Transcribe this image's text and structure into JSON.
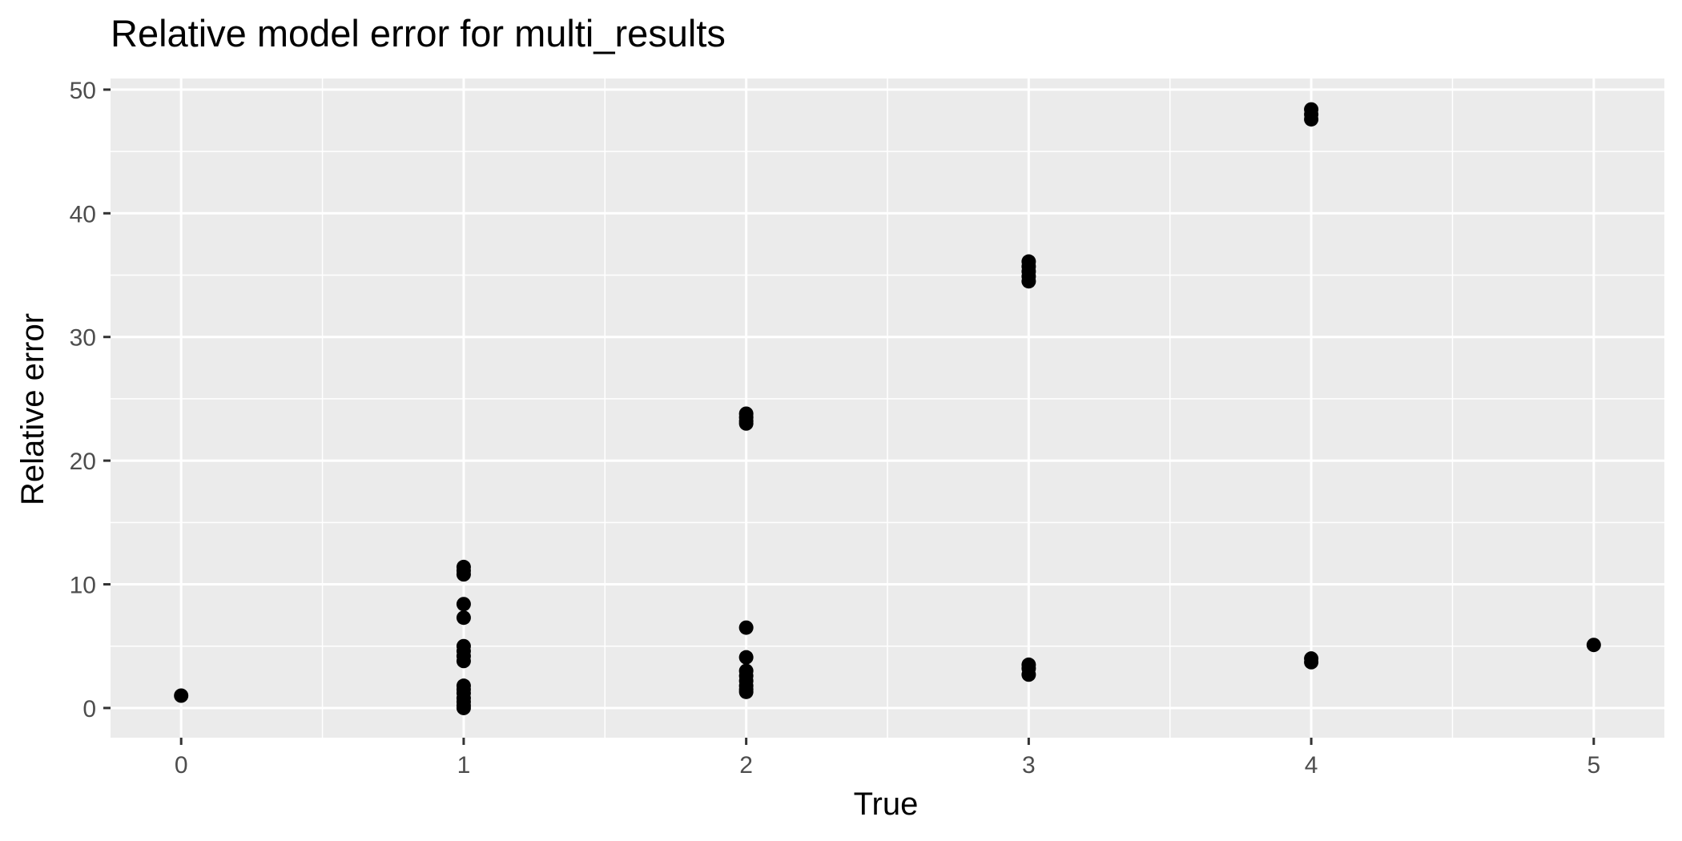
{
  "chart_data": {
    "type": "scatter",
    "title": "Relative model error for multi_results",
    "xlabel": "True",
    "ylabel": "Relative error",
    "xlim": [
      -0.25,
      5.25
    ],
    "ylim": [
      -2.4,
      50.9
    ],
    "x_ticks": [
      0,
      1,
      2,
      3,
      4,
      5
    ],
    "x_tick_labels": [
      "0",
      "1",
      "2",
      "3",
      "4",
      "5"
    ],
    "y_ticks": [
      0,
      10,
      20,
      30,
      40,
      50
    ],
    "y_tick_labels": [
      "0",
      "10",
      "20",
      "30",
      "40",
      "50"
    ],
    "grid": true,
    "legend": "none",
    "colors": {
      "panel": "#ebebeb",
      "grid": "#ffffff",
      "point": "#000000",
      "tick": "#4d4d4d"
    },
    "series": [
      {
        "points": [
          [
            0,
            1.0
          ],
          [
            1,
            11.4
          ],
          [
            1,
            11.1
          ],
          [
            1,
            10.8
          ],
          [
            1,
            8.4
          ],
          [
            1,
            7.3
          ],
          [
            1,
            5.0
          ],
          [
            1,
            4.6
          ],
          [
            1,
            4.2
          ],
          [
            1,
            3.8
          ],
          [
            1,
            1.8
          ],
          [
            1,
            1.5
          ],
          [
            1,
            1.2
          ],
          [
            1,
            0.8
          ],
          [
            1,
            0.5
          ],
          [
            1,
            0.2
          ],
          [
            1,
            0.0
          ],
          [
            2,
            23.8
          ],
          [
            2,
            23.5
          ],
          [
            2,
            23.2
          ],
          [
            2,
            23.0
          ],
          [
            2,
            6.5
          ],
          [
            2,
            4.1
          ],
          [
            2,
            3.0
          ],
          [
            2,
            2.6
          ],
          [
            2,
            2.2
          ],
          [
            2,
            1.8
          ],
          [
            2,
            1.5
          ],
          [
            2,
            1.3
          ],
          [
            3,
            36.1
          ],
          [
            3,
            35.7
          ],
          [
            3,
            35.3
          ],
          [
            3,
            34.9
          ],
          [
            3,
            34.5
          ],
          [
            3,
            3.5
          ],
          [
            3,
            3.2
          ],
          [
            3,
            2.7
          ],
          [
            4,
            48.4
          ],
          [
            4,
            48.0
          ],
          [
            4,
            47.6
          ],
          [
            4,
            4.0
          ],
          [
            4,
            3.7
          ],
          [
            5,
            5.1
          ]
        ]
      }
    ]
  }
}
